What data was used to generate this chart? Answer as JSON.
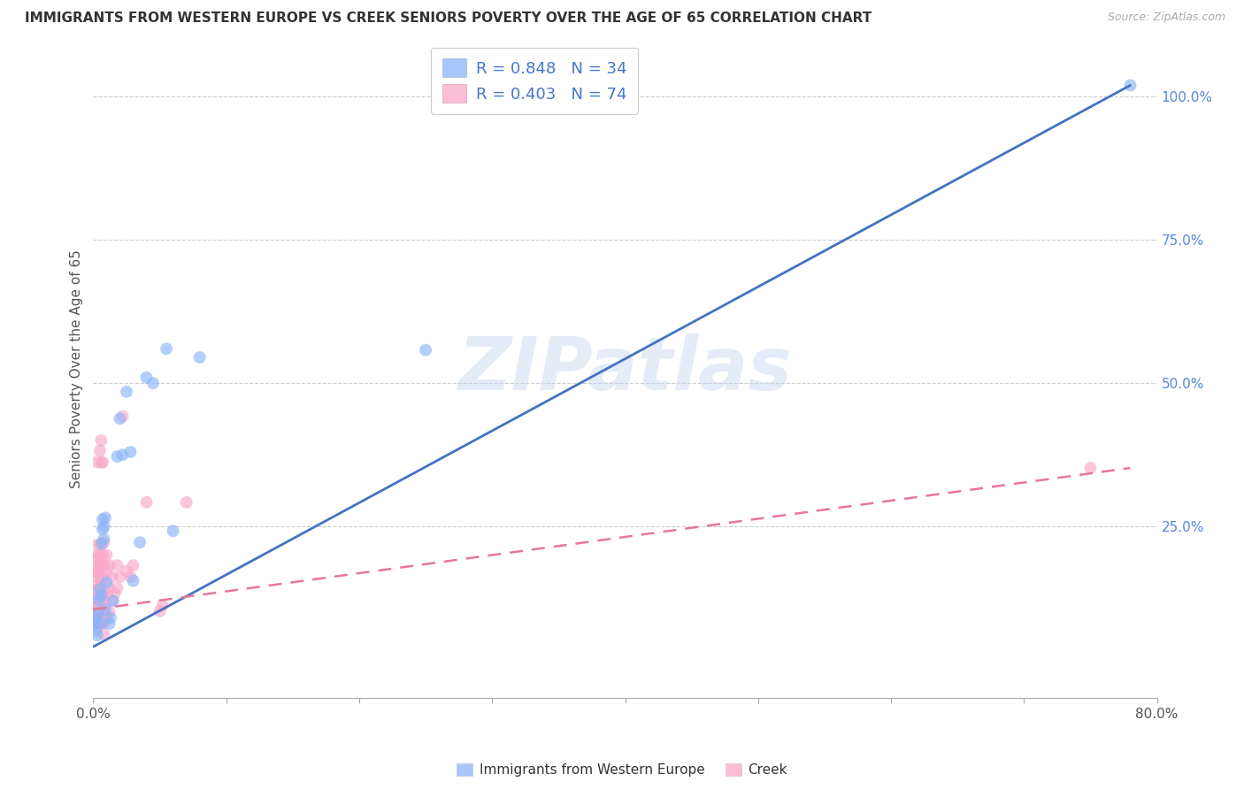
{
  "title": "IMMIGRANTS FROM WESTERN EUROPE VS CREEK SENIORS POVERTY OVER THE AGE OF 65 CORRELATION CHART",
  "source": "Source: ZipAtlas.com",
  "ylabel": "Seniors Poverty Over the Age of 65",
  "xlim": [
    0.0,
    0.8
  ],
  "ylim": [
    -0.05,
    1.1
  ],
  "xticks": [
    0.0,
    0.1,
    0.2,
    0.3,
    0.4,
    0.5,
    0.6,
    0.7,
    0.8
  ],
  "xticklabels": [
    "0.0%",
    "",
    "",
    "",
    "",
    "",
    "",
    "",
    "80.0%"
  ],
  "yticks_right": [
    0.0,
    0.25,
    0.5,
    0.75,
    1.0
  ],
  "yticklabels_right": [
    "",
    "25.0%",
    "50.0%",
    "75.0%",
    "100.0%"
  ],
  "grid_yticks": [
    0.25,
    0.5,
    0.75,
    1.0
  ],
  "watermark": "ZIPatlas",
  "legend_r_blue": "0.848",
  "legend_n_blue": "34",
  "legend_r_pink": "0.403",
  "legend_n_pink": "74",
  "blue_color": "#8ab4f8",
  "pink_color": "#f9a8c9",
  "blue_line_color": "#4472c4",
  "pink_line_color": "#e8759a",
  "blue_scatter": [
    [
      0.001,
      0.08
    ],
    [
      0.002,
      0.068
    ],
    [
      0.003,
      0.06
    ],
    [
      0.003,
      0.09
    ],
    [
      0.004,
      0.1
    ],
    [
      0.004,
      0.122
    ],
    [
      0.005,
      0.08
    ],
    [
      0.005,
      0.14
    ],
    [
      0.006,
      0.13
    ],
    [
      0.006,
      0.22
    ],
    [
      0.007,
      0.245
    ],
    [
      0.007,
      0.262
    ],
    [
      0.008,
      0.25
    ],
    [
      0.008,
      0.228
    ],
    [
      0.009,
      0.105
    ],
    [
      0.009,
      0.265
    ],
    [
      0.01,
      0.152
    ],
    [
      0.012,
      0.08
    ],
    [
      0.013,
      0.09
    ],
    [
      0.015,
      0.12
    ],
    [
      0.018,
      0.372
    ],
    [
      0.02,
      0.438
    ],
    [
      0.022,
      0.375
    ],
    [
      0.025,
      0.485
    ],
    [
      0.028,
      0.38
    ],
    [
      0.03,
      0.155
    ],
    [
      0.035,
      0.222
    ],
    [
      0.04,
      0.51
    ],
    [
      0.045,
      0.5
    ],
    [
      0.055,
      0.56
    ],
    [
      0.06,
      0.242
    ],
    [
      0.08,
      0.545
    ],
    [
      0.25,
      0.558
    ],
    [
      0.78,
      1.02
    ]
  ],
  "pink_scatter": [
    [
      0.001,
      0.082
    ],
    [
      0.001,
      0.092
    ],
    [
      0.001,
      0.102
    ],
    [
      0.001,
      0.118
    ],
    [
      0.001,
      0.138
    ],
    [
      0.002,
      0.082
    ],
    [
      0.002,
      0.09
    ],
    [
      0.002,
      0.11
    ],
    [
      0.002,
      0.128
    ],
    [
      0.002,
      0.148
    ],
    [
      0.002,
      0.17
    ],
    [
      0.002,
      0.192
    ],
    [
      0.003,
      0.082
    ],
    [
      0.003,
      0.1
    ],
    [
      0.003,
      0.118
    ],
    [
      0.003,
      0.138
    ],
    [
      0.003,
      0.17
    ],
    [
      0.003,
      0.2
    ],
    [
      0.003,
      0.218
    ],
    [
      0.003,
      0.362
    ],
    [
      0.004,
      0.082
    ],
    [
      0.004,
      0.1
    ],
    [
      0.004,
      0.12
    ],
    [
      0.004,
      0.14
    ],
    [
      0.004,
      0.16
    ],
    [
      0.004,
      0.182
    ],
    [
      0.005,
      0.082
    ],
    [
      0.005,
      0.1
    ],
    [
      0.005,
      0.12
    ],
    [
      0.005,
      0.172
    ],
    [
      0.005,
      0.2
    ],
    [
      0.005,
      0.382
    ],
    [
      0.006,
      0.082
    ],
    [
      0.006,
      0.102
    ],
    [
      0.006,
      0.122
    ],
    [
      0.006,
      0.152
    ],
    [
      0.006,
      0.182
    ],
    [
      0.006,
      0.218
    ],
    [
      0.006,
      0.362
    ],
    [
      0.006,
      0.4
    ],
    [
      0.007,
      0.082
    ],
    [
      0.007,
      0.1
    ],
    [
      0.007,
      0.13
    ],
    [
      0.007,
      0.162
    ],
    [
      0.007,
      0.2
    ],
    [
      0.007,
      0.362
    ],
    [
      0.008,
      0.082
    ],
    [
      0.008,
      0.112
    ],
    [
      0.008,
      0.14
    ],
    [
      0.008,
      0.182
    ],
    [
      0.008,
      0.222
    ],
    [
      0.008,
      0.062
    ],
    [
      0.01,
      0.09
    ],
    [
      0.01,
      0.13
    ],
    [
      0.01,
      0.17
    ],
    [
      0.01,
      0.2
    ],
    [
      0.012,
      0.1
    ],
    [
      0.012,
      0.142
    ],
    [
      0.012,
      0.182
    ],
    [
      0.014,
      0.12
    ],
    [
      0.014,
      0.162
    ],
    [
      0.016,
      0.132
    ],
    [
      0.018,
      0.142
    ],
    [
      0.018,
      0.182
    ],
    [
      0.02,
      0.162
    ],
    [
      0.022,
      0.442
    ],
    [
      0.025,
      0.172
    ],
    [
      0.028,
      0.162
    ],
    [
      0.03,
      0.182
    ],
    [
      0.04,
      0.292
    ],
    [
      0.05,
      0.102
    ],
    [
      0.052,
      0.112
    ],
    [
      0.07,
      0.292
    ],
    [
      0.75,
      0.352
    ]
  ],
  "blue_trendline_x": [
    0.0,
    0.78
  ],
  "blue_trendline_y": [
    0.04,
    1.02
  ],
  "pink_trendline_x": [
    0.0,
    0.78
  ],
  "pink_trendline_y": [
    0.105,
    0.352
  ],
  "legend_blue_label": "R = 0.848   N = 34",
  "legend_pink_label": "R = 0.403   N = 74",
  "bottom_legend_blue": "Immigrants from Western Europe",
  "bottom_legend_pink": "Creek"
}
